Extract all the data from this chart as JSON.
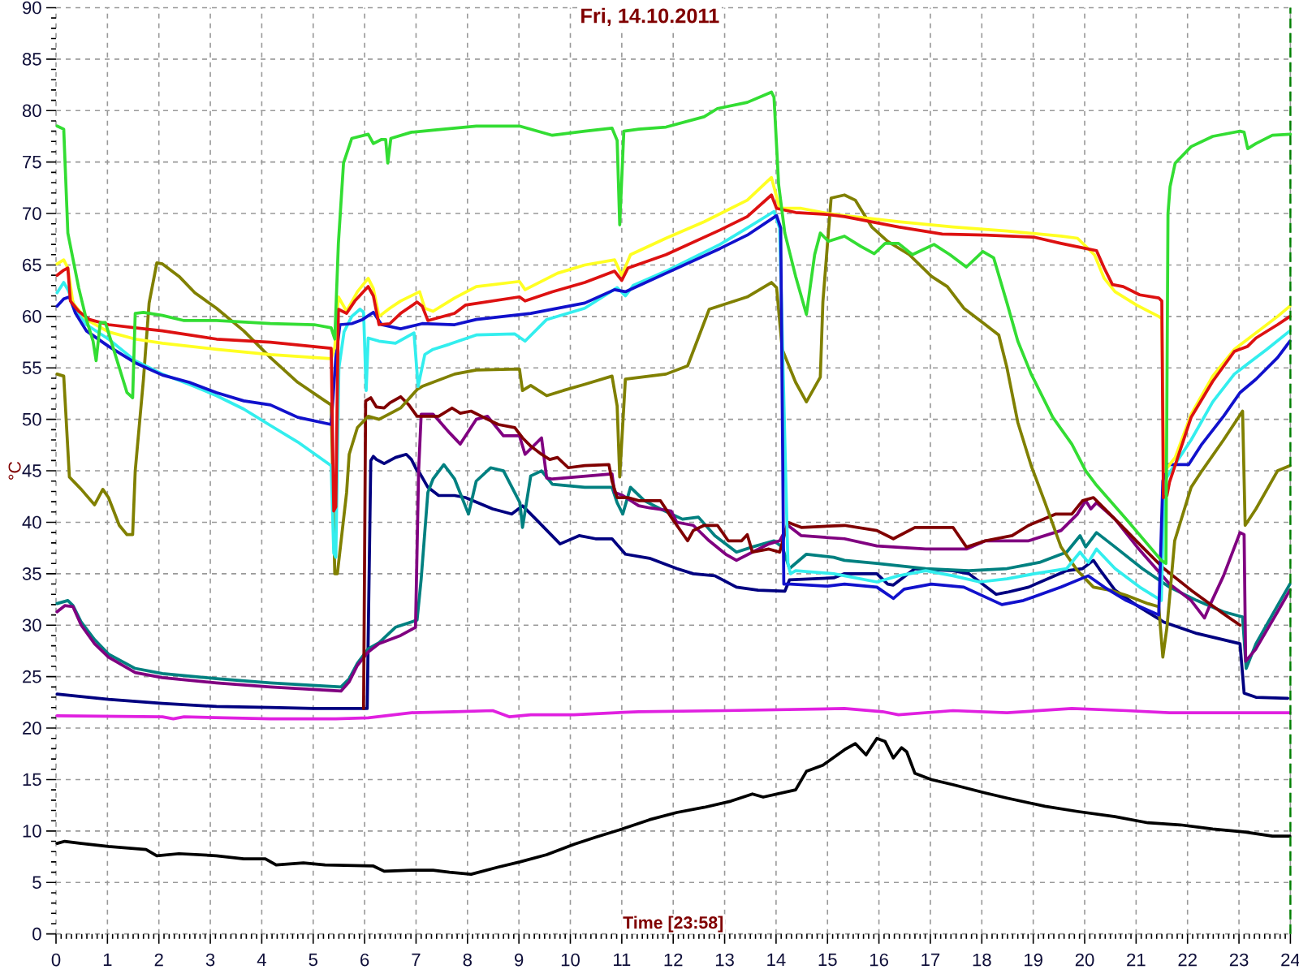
{
  "chart_data": {
    "type": "line",
    "title": "Fri, 14.10.2011",
    "xlabel": "Time [23:58]",
    "ylabel": "°C",
    "xlim": [
      0,
      24
    ],
    "ylim": [
      0,
      90
    ],
    "xticks": [
      0,
      1,
      2,
      3,
      4,
      5,
      6,
      7,
      8,
      9,
      10,
      11,
      12,
      13,
      14,
      15,
      16,
      17,
      18,
      19,
      20,
      21,
      22,
      23,
      24
    ],
    "yticks": [
      0,
      5,
      10,
      15,
      20,
      25,
      30,
      35,
      40,
      45,
      50,
      55,
      60,
      65,
      70,
      75,
      80,
      85,
      90
    ],
    "grid": true,
    "ref_lines": [
      {
        "axis": "x",
        "value": 24,
        "color": "#008000",
        "line_style": "dashed"
      }
    ],
    "series": [
      {
        "color": "#000000",
        "x": [
          0.02,
          0.17,
          0.49,
          1.02,
          1.75,
          1.96,
          2.39,
          3.12,
          3.65,
          4.07,
          4.28,
          4.81,
          5.23,
          6.17,
          6.38,
          6.91,
          7.33,
          7.65,
          8.07,
          8.6,
          9.02,
          9.54,
          10.07,
          10.49,
          11.01,
          11.54,
          12.07,
          12.6,
          13.12,
          13.54,
          13.75,
          14.38,
          14.59,
          14.91,
          15.33,
          15.54,
          15.75,
          15.96,
          16.12,
          16.28,
          16.44,
          16.54,
          16.7,
          17.02,
          17.44,
          18.07,
          18.49,
          19.23,
          19.86,
          20.59,
          21.23,
          21.86,
          22.49,
          23.12,
          23.65,
          23.99
        ],
        "values": [
          8.8,
          9.0,
          8.8,
          8.5,
          8.2,
          7.6,
          7.8,
          7.6,
          7.3,
          7.3,
          6.7,
          6.9,
          6.7,
          6.6,
          6.1,
          6.2,
          6.2,
          6.0,
          5.8,
          6.5,
          7.0,
          7.7,
          8.7,
          9.4,
          10.2,
          11.1,
          11.8,
          12.3,
          12.9,
          13.6,
          13.3,
          14.0,
          15.8,
          16.4,
          17.9,
          18.5,
          17.4,
          19.0,
          18.7,
          17.1,
          18.1,
          17.7,
          15.6,
          15.0,
          14.5,
          13.7,
          13.2,
          12.4,
          11.9,
          11.4,
          10.8,
          10.6,
          10.2,
          9.9,
          9.5,
          9.5
        ]
      },
      {
        "color": "#e020e0",
        "x": [
          0.02,
          2.07,
          2.28,
          2.49,
          4.17,
          5.44,
          6.07,
          6.91,
          7.75,
          8.49,
          8.81,
          9.23,
          10.07,
          11.33,
          13.02,
          15.33,
          16.07,
          16.38,
          17.44,
          18.49,
          19.75,
          20.81,
          21.65,
          23.99
        ],
        "values": [
          21.2,
          21.1,
          20.9,
          21.1,
          20.9,
          20.9,
          21.0,
          21.5,
          21.6,
          21.7,
          21.1,
          21.3,
          21.3,
          21.6,
          21.7,
          21.9,
          21.6,
          21.3,
          21.7,
          21.5,
          21.9,
          21.7,
          21.5,
          21.5
        ]
      },
      {
        "color": "#000080",
        "x": [
          0.02,
          1.02,
          2.07,
          3.12,
          4.17,
          5.02,
          6.05,
          6.12,
          6.17,
          6.23,
          6.38,
          6.6,
          6.81,
          6.91,
          7.02,
          7.07,
          7.23,
          7.44,
          7.75,
          7.96,
          8.49,
          8.86,
          9.07,
          9.33,
          9.8,
          10.17,
          10.49,
          10.81,
          11.07,
          11.54,
          12.07,
          12.39,
          12.81,
          13.23,
          13.65,
          14.17,
          14.26,
          15.12,
          15.33,
          15.96,
          16.17,
          16.28,
          16.7,
          17.44,
          17.75,
          18.28,
          18.49,
          18.91,
          19.65,
          19.96,
          20.17,
          20.28,
          20.59,
          21.02,
          21.54,
          22.18,
          23.02,
          23.1,
          23.33,
          23.95
        ],
        "values": [
          23.3,
          22.8,
          22.4,
          22.1,
          22.0,
          21.9,
          21.9,
          46.0,
          46.4,
          46.1,
          45.7,
          46.3,
          46.6,
          46.1,
          45.0,
          44.8,
          43.4,
          42.6,
          42.6,
          42.4,
          41.3,
          40.8,
          41.6,
          40.3,
          37.9,
          38.7,
          38.4,
          38.4,
          36.9,
          36.5,
          35.5,
          35.0,
          34.8,
          33.7,
          33.4,
          33.3,
          34.4,
          34.6,
          35.0,
          35.0,
          34.0,
          33.9,
          35.5,
          35.3,
          35.0,
          33.0,
          33.2,
          33.7,
          35.3,
          35.5,
          36.3,
          35.5,
          33.4,
          31.9,
          30.3,
          29.2,
          28.2,
          23.4,
          23.0,
          22.9
        ]
      },
      {
        "color": "#008080",
        "x": [
          0.02,
          0.23,
          0.33,
          0.49,
          0.75,
          1.02,
          1.54,
          2.07,
          3.12,
          4.17,
          5.54,
          5.7,
          5.86,
          6.07,
          6.28,
          6.6,
          7.02,
          7.1,
          7.23,
          7.33,
          7.54,
          7.75,
          8.02,
          8.17,
          8.45,
          8.7,
          9.02,
          9.07,
          9.23,
          9.44,
          9.65,
          10.28,
          10.81,
          10.91,
          11.02,
          11.17,
          11.44,
          11.75,
          12.18,
          12.49,
          12.81,
          13.23,
          13.54,
          13.96,
          14.12,
          14.26,
          14.59,
          15.12,
          15.33,
          15.96,
          16.91,
          17.75,
          18.49,
          19.12,
          19.65,
          19.91,
          20.02,
          20.23,
          20.59,
          21.12,
          21.65,
          22.18,
          22.7,
          23.07,
          23.14,
          23.33,
          23.75,
          23.99
        ],
        "values": [
          32.1,
          32.4,
          31.9,
          30.3,
          28.6,
          27.2,
          25.8,
          25.3,
          24.8,
          24.4,
          24.0,
          24.8,
          26.3,
          27.7,
          28.3,
          29.8,
          30.5,
          34.5,
          42.9,
          44.2,
          45.6,
          44.2,
          40.8,
          44.0,
          45.3,
          45.0,
          41.9,
          39.5,
          44.5,
          45.0,
          43.7,
          43.4,
          43.4,
          41.9,
          40.8,
          43.4,
          42.1,
          41.3,
          40.3,
          40.5,
          38.7,
          37.1,
          37.6,
          38.2,
          37.6,
          35.5,
          36.9,
          36.6,
          36.3,
          36.0,
          35.5,
          35.3,
          35.5,
          36.1,
          37.1,
          38.7,
          37.6,
          39.0,
          37.6,
          35.5,
          33.7,
          32.4,
          31.3,
          30.8,
          25.8,
          28.2,
          31.9,
          34.0
        ]
      },
      {
        "color": "#800080",
        "x": [
          0.02,
          0.17,
          0.33,
          0.49,
          0.75,
          1.02,
          1.54,
          2.07,
          3.12,
          4.17,
          5.54,
          5.7,
          5.86,
          6.07,
          6.28,
          6.7,
          6.99,
          7.05,
          7.1,
          7.33,
          7.44,
          7.65,
          7.86,
          8.17,
          8.39,
          8.7,
          9.01,
          9.12,
          9.44,
          9.54,
          9.65,
          10.81,
          10.86,
          11.02,
          11.33,
          11.54,
          11.96,
          12.07,
          12.39,
          12.7,
          13.02,
          13.23,
          13.54,
          13.86,
          14.07,
          14.23,
          14.49,
          15.33,
          15.96,
          16.91,
          17.7,
          18.07,
          18.91,
          19.54,
          19.86,
          20.02,
          20.12,
          20.23,
          20.59,
          21.02,
          21.65,
          22.07,
          22.33,
          22.44,
          22.7,
          23.02,
          23.1,
          23.13,
          23.33,
          23.75,
          23.99
        ],
        "values": [
          31.3,
          31.9,
          31.8,
          30.0,
          28.2,
          26.9,
          25.4,
          24.9,
          24.4,
          24.0,
          23.6,
          24.5,
          26.1,
          27.4,
          28.2,
          29.0,
          29.8,
          45.0,
          50.5,
          50.5,
          49.9,
          48.7,
          47.6,
          50.0,
          50.3,
          48.4,
          48.4,
          46.6,
          48.2,
          44.3,
          44.2,
          44.7,
          42.9,
          42.6,
          41.6,
          41.4,
          41.1,
          40.0,
          39.7,
          38.2,
          36.9,
          36.3,
          37.1,
          37.9,
          38.2,
          39.7,
          38.7,
          38.4,
          37.7,
          37.4,
          37.4,
          38.2,
          38.2,
          39.2,
          40.8,
          42.1,
          41.3,
          41.9,
          40.3,
          37.6,
          34.0,
          32.4,
          30.7,
          32.0,
          34.8,
          39.0,
          38.8,
          26.5,
          27.7,
          31.3,
          33.4
        ]
      },
      {
        "color": "#800000",
        "x": [
          5.98,
          6.02,
          6.12,
          6.23,
          6.38,
          6.49,
          6.7,
          6.86,
          7.02,
          7.23,
          7.44,
          7.7,
          7.86,
          8.07,
          8.39,
          8.6,
          8.92,
          9.07,
          9.23,
          9.44,
          9.6,
          9.75,
          9.96,
          10.28,
          10.75,
          10.81,
          10.91,
          11.12,
          11.33,
          11.75,
          11.96,
          12.28,
          12.39,
          12.6,
          12.86,
          13.07,
          13.33,
          13.44,
          13.54,
          13.86,
          14.07,
          14.23,
          14.49,
          15.33,
          15.96,
          16.28,
          16.7,
          17.44,
          17.7,
          18.07,
          18.59,
          18.91,
          19.44,
          19.75,
          19.96,
          20.17,
          20.59,
          21.12,
          21.54,
          22.07,
          22.7,
          23.02
        ],
        "values": [
          21.9,
          51.8,
          52.1,
          51.2,
          51.1,
          51.6,
          52.2,
          51.4,
          50.3,
          50.3,
          50.3,
          51.1,
          50.6,
          50.8,
          50.0,
          49.5,
          49.2,
          48.2,
          47.4,
          46.6,
          46.1,
          46.3,
          45.3,
          45.5,
          45.6,
          44.0,
          42.4,
          42.4,
          42.1,
          42.1,
          40.5,
          38.2,
          39.2,
          39.7,
          39.7,
          38.2,
          38.2,
          38.8,
          37.1,
          37.4,
          37.1,
          40.0,
          39.5,
          39.7,
          39.2,
          38.4,
          39.5,
          39.5,
          37.6,
          38.2,
          38.7,
          39.7,
          40.8,
          40.8,
          42.1,
          42.4,
          40.3,
          37.6,
          35.5,
          33.4,
          31.1,
          30.0
        ]
      },
      {
        "color": "#808000",
        "x": [
          0.02,
          0.15,
          0.26,
          0.49,
          0.75,
          0.91,
          1.02,
          1.23,
          1.38,
          1.49,
          1.54,
          1.7,
          1.81,
          1.96,
          2.07,
          2.39,
          2.7,
          3.12,
          3.65,
          4.17,
          4.7,
          5.23,
          5.35,
          5.42,
          5.47,
          5.65,
          5.7,
          5.86,
          6.07,
          6.28,
          6.7,
          7.02,
          7.12,
          7.75,
          8.17,
          9.01,
          9.07,
          9.23,
          9.54,
          9.86,
          10.28,
          10.81,
          10.91,
          10.96,
          11.07,
          11.54,
          11.86,
          12.28,
          12.7,
          13.44,
          13.91,
          14.01,
          14.12,
          14.38,
          14.59,
          14.86,
          14.91,
          15.07,
          15.33,
          15.54,
          15.86,
          16.17,
          16.59,
          17.02,
          17.33,
          17.65,
          18.07,
          18.33,
          18.49,
          18.7,
          18.96,
          19.23,
          19.54,
          19.86,
          20.17,
          20.49,
          20.81,
          21.23,
          21.44,
          21.52,
          21.6,
          21.75,
          22.07,
          22.28,
          22.7,
          23.07,
          23.12,
          23.33,
          23.75,
          23.99
        ],
        "values": [
          54.4,
          54.2,
          44.4,
          43.2,
          41.7,
          43.2,
          42.4,
          39.7,
          38.8,
          38.8,
          45.0,
          53.9,
          61.3,
          65.2,
          65.1,
          63.9,
          62.3,
          60.8,
          58.6,
          56.0,
          53.6,
          51.8,
          51.4,
          35.0,
          35.0,
          42.9,
          46.6,
          49.2,
          50.3,
          50.0,
          51.1,
          52.9,
          53.2,
          54.4,
          54.8,
          54.9,
          52.8,
          53.3,
          52.3,
          52.8,
          53.4,
          54.2,
          51.3,
          44.4,
          53.9,
          54.2,
          54.4,
          55.2,
          60.7,
          61.9,
          63.3,
          62.8,
          56.8,
          53.6,
          51.7,
          54.1,
          61.4,
          71.5,
          71.8,
          71.3,
          68.7,
          67.3,
          66.0,
          63.9,
          62.9,
          60.8,
          59.2,
          58.2,
          55.0,
          49.7,
          45.5,
          41.9,
          37.6,
          35.3,
          33.7,
          33.4,
          32.9,
          32.1,
          31.8,
          26.9,
          29.8,
          38.2,
          43.4,
          45.0,
          48.0,
          50.8,
          39.7,
          41.3,
          45.0,
          45.5
        ]
      },
      {
        "color": "#33eeee",
        "x": [
          0.02,
          0.15,
          0.23,
          0.38,
          0.59,
          1.02,
          1.54,
          2.07,
          2.59,
          3.12,
          3.65,
          4.17,
          4.7,
          5.35,
          5.4,
          5.44,
          5.5,
          5.6,
          5.75,
          5.91,
          5.98,
          6.03,
          6.07,
          6.28,
          6.6,
          6.96,
          7.04,
          7.17,
          7.33,
          7.65,
          8.17,
          8.92,
          9.12,
          9.54,
          10.28,
          10.91,
          11.07,
          11.22,
          11.86,
          12.91,
          13.44,
          13.96,
          14.07,
          14.16,
          14.23,
          14.28,
          14.38,
          15.12,
          15.33,
          15.96,
          16.38,
          16.91,
          17.44,
          17.96,
          18.49,
          19.02,
          19.65,
          19.91,
          20.07,
          20.23,
          20.59,
          21.07,
          21.49,
          21.55,
          21.7,
          22.07,
          22.49,
          22.91,
          23.17,
          23.54,
          23.99
        ],
        "values": [
          62.3,
          63.3,
          62.6,
          60.8,
          59.2,
          57.8,
          55.7,
          54.4,
          53.4,
          52.3,
          51.0,
          49.4,
          47.8,
          45.5,
          37.0,
          36.6,
          55.0,
          58.5,
          60.0,
          60.7,
          60.4,
          52.8,
          57.9,
          57.6,
          57.4,
          58.4,
          53.2,
          56.3,
          56.8,
          57.3,
          58.2,
          58.3,
          57.6,
          59.7,
          60.8,
          62.8,
          62.0,
          63.0,
          64.4,
          67.0,
          68.6,
          70.2,
          68.6,
          50.0,
          36.0,
          35.0,
          35.3,
          35.0,
          34.8,
          34.2,
          34.8,
          35.3,
          34.8,
          34.2,
          34.5,
          35.0,
          35.5,
          37.1,
          36.1,
          37.4,
          35.5,
          33.7,
          32.4,
          44.0,
          45.2,
          48.0,
          51.7,
          54.4,
          55.4,
          56.8,
          58.6
        ]
      },
      {
        "color": "#1111cc",
        "x": [
          0.02,
          0.15,
          0.26,
          0.38,
          0.59,
          1.02,
          1.54,
          2.07,
          2.59,
          3.12,
          3.65,
          4.17,
          4.7,
          5.35,
          5.44,
          5.52,
          5.75,
          5.96,
          6.17,
          6.33,
          6.7,
          7.12,
          7.75,
          8.17,
          9.23,
          10.28,
          10.86,
          11.07,
          11.86,
          12.91,
          13.44,
          14.01,
          14.09,
          14.15,
          14.28,
          15.0,
          15.33,
          15.96,
          16.28,
          16.49,
          17.02,
          17.65,
          18.39,
          18.81,
          19.54,
          20.07,
          20.38,
          20.81,
          21.44,
          21.52,
          21.6,
          22.02,
          22.28,
          22.7,
          23.02,
          23.33,
          23.75,
          23.99
        ],
        "values": [
          61.0,
          61.7,
          61.9,
          60.3,
          58.6,
          57.1,
          55.5,
          54.3,
          53.6,
          52.6,
          51.8,
          51.4,
          50.2,
          49.5,
          56.0,
          59.2,
          59.3,
          59.7,
          60.4,
          59.2,
          58.8,
          59.3,
          59.2,
          59.7,
          60.3,
          61.3,
          62.6,
          62.4,
          64.2,
          66.6,
          67.9,
          69.8,
          68.6,
          34.0,
          34.0,
          33.8,
          34.0,
          33.7,
          32.6,
          33.5,
          34.0,
          33.7,
          32.0,
          32.4,
          33.7,
          34.8,
          33.7,
          32.4,
          31.0,
          44.0,
          45.6,
          45.6,
          47.6,
          50.3,
          52.6,
          53.9,
          56.0,
          57.6
        ]
      },
      {
        "color": "#ffff22",
        "x": [
          0.02,
          0.15,
          0.23,
          0.33,
          0.59,
          1.02,
          1.54,
          2.07,
          3.12,
          4.17,
          5.35,
          5.42,
          5.49,
          5.65,
          5.86,
          6.07,
          6.17,
          6.28,
          6.49,
          6.7,
          7.07,
          7.17,
          7.33,
          7.75,
          8.17,
          9.01,
          9.12,
          9.75,
          10.28,
          10.86,
          11.0,
          11.17,
          11.86,
          12.6,
          13.44,
          13.91,
          14.07,
          14.49,
          15.02,
          15.33,
          16.38,
          17.44,
          18.49,
          19.54,
          19.86,
          20.19,
          20.38,
          20.59,
          21.01,
          21.44,
          21.5,
          21.54,
          21.76,
          22.07,
          22.49,
          22.91,
          23.33,
          23.75,
          23.99
        ],
        "values": [
          65.1,
          65.5,
          64.7,
          61.3,
          59.7,
          58.5,
          57.8,
          57.4,
          56.8,
          56.3,
          55.9,
          57.0,
          61.9,
          60.5,
          62.4,
          63.7,
          62.7,
          60.0,
          60.8,
          61.5,
          62.4,
          60.8,
          60.5,
          61.8,
          62.9,
          63.4,
          62.6,
          64.2,
          65.0,
          65.5,
          64.0,
          66.0,
          67.6,
          69.2,
          71.3,
          73.5,
          70.5,
          70.5,
          70.0,
          69.8,
          69.2,
          68.7,
          68.3,
          67.8,
          67.6,
          66.0,
          63.7,
          62.4,
          61.1,
          60.0,
          59.8,
          44.9,
          46.3,
          50.5,
          54.2,
          56.8,
          58.4,
          60.0,
          61.0
        ]
      },
      {
        "color": "#dd1111",
        "x": [
          0.02,
          0.15,
          0.23,
          0.28,
          0.44,
          0.65,
          1.02,
          1.54,
          2.07,
          2.59,
          3.12,
          4.17,
          5.35,
          5.4,
          5.44,
          5.49,
          5.65,
          5.81,
          6.07,
          6.17,
          6.28,
          6.49,
          6.7,
          7.02,
          7.12,
          7.23,
          7.75,
          7.96,
          9.01,
          9.12,
          9.65,
          10.28,
          10.86,
          11.0,
          11.12,
          11.86,
          12.91,
          13.44,
          13.91,
          14.01,
          14.38,
          15.02,
          15.33,
          16.38,
          17.23,
          18.07,
          19.02,
          19.54,
          20.02,
          20.23,
          20.38,
          20.54,
          20.75,
          21.07,
          21.44,
          21.5,
          21.53,
          21.6,
          21.65,
          22.07,
          22.49,
          22.91,
          23.17,
          23.33,
          23.75,
          23.99
        ],
        "values": [
          64.0,
          64.5,
          64.7,
          61.5,
          60.5,
          59.7,
          59.2,
          58.9,
          58.6,
          58.2,
          57.8,
          57.5,
          56.9,
          41.1,
          41.5,
          60.7,
          60.3,
          61.5,
          62.9,
          62.0,
          59.2,
          59.3,
          60.3,
          61.4,
          61.0,
          59.6,
          60.3,
          61.1,
          61.9,
          61.5,
          62.4,
          63.3,
          64.4,
          63.5,
          64.7,
          66.0,
          68.4,
          69.7,
          71.8,
          70.5,
          70.1,
          69.9,
          69.7,
          68.7,
          68.0,
          67.9,
          67.7,
          67.1,
          66.6,
          66.4,
          64.7,
          63.1,
          62.9,
          62.1,
          61.8,
          61.5,
          42.4,
          42.6,
          43.9,
          50.2,
          53.7,
          56.6,
          57.1,
          57.9,
          59.2,
          60.0
        ]
      },
      {
        "color": "#33dd33",
        "x": [
          0.02,
          0.15,
          0.23,
          0.44,
          0.59,
          0.72,
          0.78,
          0.86,
          0.96,
          1.17,
          1.38,
          1.49,
          1.54,
          1.7,
          2.07,
          2.49,
          3.12,
          4.17,
          5.02,
          5.35,
          5.42,
          5.49,
          5.59,
          5.75,
          6.07,
          6.17,
          6.33,
          6.41,
          6.45,
          6.51,
          6.91,
          7.33,
          7.75,
          8.17,
          9.01,
          9.65,
          10.28,
          10.81,
          10.91,
          10.96,
          11.04,
          11.33,
          11.86,
          12.6,
          12.86,
          13.44,
          13.91,
          13.96,
          14.05,
          14.17,
          14.38,
          14.59,
          14.75,
          14.86,
          15.02,
          15.33,
          15.65,
          15.91,
          16.12,
          16.38,
          16.65,
          17.07,
          17.38,
          17.7,
          18.02,
          18.23,
          18.49,
          18.7,
          18.96,
          19.38,
          19.75,
          20.02,
          20.23,
          20.81,
          21.49,
          21.58,
          21.62,
          21.66,
          21.76,
          22.07,
          22.49,
          23.02,
          23.1,
          23.17,
          23.33,
          23.65,
          24
        ],
        "values": [
          78.5,
          78.2,
          68.1,
          62.8,
          59.7,
          57.6,
          55.7,
          59.4,
          59.4,
          56.0,
          52.6,
          52.1,
          60.3,
          60.4,
          60.1,
          59.6,
          59.6,
          59.3,
          59.2,
          58.9,
          57.8,
          67.1,
          74.9,
          77.3,
          77.7,
          76.8,
          77.2,
          77.2,
          74.9,
          77.3,
          77.9,
          78.1,
          78.3,
          78.5,
          78.5,
          77.6,
          78.0,
          78.3,
          77.1,
          68.9,
          78.0,
          78.2,
          78.4,
          79.4,
          80.2,
          80.8,
          81.8,
          81.3,
          72.8,
          68.1,
          63.9,
          60.2,
          66.0,
          68.1,
          67.3,
          67.8,
          66.8,
          66.1,
          67.1,
          67.1,
          66.0,
          67.0,
          66.0,
          64.8,
          66.3,
          65.7,
          61.3,
          57.6,
          54.4,
          50.2,
          47.6,
          45.0,
          43.6,
          40.3,
          36.3,
          36.0,
          70.0,
          72.6,
          74.9,
          76.5,
          77.5,
          78.0,
          77.9,
          76.3,
          76.8,
          77.6,
          77.7
        ]
      }
    ]
  }
}
